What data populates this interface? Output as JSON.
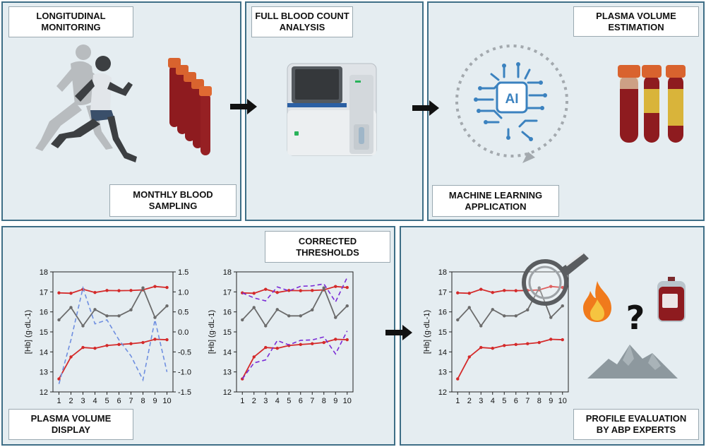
{
  "panels": {
    "monitoring": {
      "title": "LONGITUDINAL\nMONITORING",
      "subtitle": "MONTHLY BLOOD\nSAMPLING"
    },
    "fbc": {
      "title": "FULL BLOOD COUNT\nANALYSIS"
    },
    "ml": {
      "title": "PLASMA VOLUME\nESTIMATION",
      "subtitle": "MACHINE LEARNING\nAPPLICATION",
      "ai_label": "AI"
    },
    "display": {
      "title": "PLASMA VOLUME\nDISPLAY"
    },
    "corrected": {
      "title": "CORRECTED\nTHRESHOLDS"
    },
    "profile": {
      "title": "PROFILE EVALUATION\nBY ABP EXPERTS",
      "question": "?"
    }
  },
  "colors": {
    "panel_bg": "#e5edf1",
    "panel_border": "#3e6e86",
    "threshold_red": "#d42a2a",
    "hb_gray": "#6b6b6b",
    "pv_blue_dashed": "#6f8fe0",
    "corrected_purple": "#7a2bd6"
  },
  "icons": [
    "runners-icon",
    "blood-tubes-icon",
    "hematology-analyzer-icon",
    "ai-brain-icon",
    "plasma-tubes-icon",
    "magnifier-icon",
    "flame-icon",
    "blood-bag-icon",
    "mountain-icon",
    "arrow-right-icon"
  ],
  "chart_data": [
    {
      "type": "line",
      "title": "",
      "xlabel": "",
      "ylabel": "[Hb] (g·dL-1)",
      "x": [
        1,
        2,
        3,
        4,
        5,
        6,
        7,
        8,
        9,
        10
      ],
      "ylim": [
        12,
        18
      ],
      "yticks": [
        "12",
        "13",
        "14",
        "15",
        "16",
        "17",
        "18"
      ],
      "y2lim": [
        -1.5,
        1.5
      ],
      "y2ticks": [
        "-1.5",
        "-1.0",
        "-0.5",
        "0.0",
        "0.5",
        "1.0",
        "1.5"
      ],
      "series": [
        {
          "values": [
            16.95,
            16.93,
            17.13,
            16.97,
            17.07,
            17.06,
            17.07,
            17.1,
            17.27,
            17.22
          ]
        },
        {
          "values": [
            15.6,
            16.22,
            15.3,
            16.12,
            15.8,
            15.8,
            16.1,
            17.2,
            15.72,
            16.3
          ]
        },
        {
          "values": [
            12.65,
            13.75,
            14.22,
            14.18,
            14.32,
            14.37,
            14.41,
            14.47,
            14.63,
            14.61
          ]
        },
        {
          "axis": "right",
          "values": [
            -1.3,
            -0.2,
            1.1,
            0.2,
            0.3,
            -0.2,
            -0.6,
            -1.2,
            0.3,
            -1.0
          ]
        }
      ]
    },
    {
      "type": "line",
      "title": "",
      "xlabel": "",
      "ylabel": "[Hb] (g·dL-1)",
      "x": [
        1,
        2,
        3,
        4,
        5,
        6,
        7,
        8,
        9,
        10
      ],
      "ylim": [
        12,
        18
      ],
      "yticks": [
        "12",
        "13",
        "14",
        "15",
        "16",
        "17",
        "18"
      ],
      "series": [
        {
          "values": [
            16.95,
            16.93,
            17.13,
            16.97,
            17.07,
            17.06,
            17.07,
            17.1,
            17.27,
            17.22
          ]
        },
        {
          "values": [
            15.6,
            16.22,
            15.3,
            16.12,
            15.8,
            15.8,
            16.1,
            17.2,
            15.72,
            16.3
          ]
        },
        {
          "values": [
            12.65,
            13.75,
            14.22,
            14.18,
            14.32,
            14.37,
            14.41,
            14.47,
            14.63,
            14.61
          ]
        },
        {
          "values": [
            16.95,
            16.7,
            16.55,
            17.25,
            17.05,
            17.28,
            17.3,
            17.4,
            16.5,
            17.72
          ]
        },
        {
          "values": [
            12.65,
            13.45,
            13.6,
            14.57,
            14.35,
            14.58,
            14.6,
            14.75,
            13.9,
            15.05
          ]
        }
      ]
    },
    {
      "type": "line",
      "title": "",
      "xlabel": "",
      "ylabel": "[Hb] (g·dL-1)",
      "x": [
        1,
        2,
        3,
        4,
        5,
        6,
        7,
        8,
        9,
        10
      ],
      "ylim": [
        12,
        18
      ],
      "yticks": [
        "12",
        "13",
        "14",
        "15",
        "16",
        "17",
        "18"
      ],
      "series": [
        {
          "values": [
            16.95,
            16.93,
            17.13,
            16.97,
            17.07,
            17.06,
            17.07,
            17.1,
            17.27,
            17.22
          ]
        },
        {
          "values": [
            15.6,
            16.22,
            15.3,
            16.12,
            15.8,
            15.8,
            16.1,
            17.2,
            15.72,
            16.3
          ]
        },
        {
          "values": [
            12.65,
            13.75,
            14.22,
            14.18,
            14.32,
            14.37,
            14.41,
            14.47,
            14.63,
            14.61
          ]
        }
      ]
    }
  ]
}
